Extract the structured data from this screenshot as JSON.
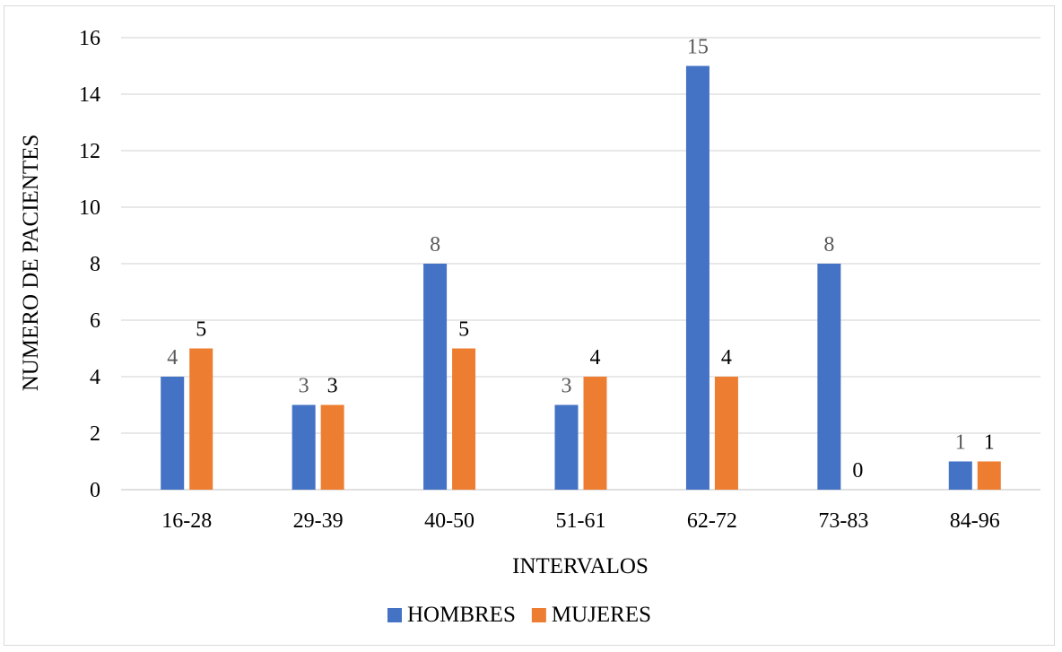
{
  "chart_data": {
    "type": "bar",
    "title": "",
    "xlabel": "INTERVALOS",
    "ylabel": "NUMERO DE PACIENTES",
    "ylim": [
      0,
      16
    ],
    "yticks": [
      0,
      2,
      4,
      6,
      8,
      10,
      12,
      14,
      16
    ],
    "grid": true,
    "legend_position": "bottom",
    "categories": [
      "16-28",
      "29-39",
      "40-50",
      "51-61",
      "62-72",
      "73-83",
      "84-96"
    ],
    "series": [
      {
        "name": "HOMBRES",
        "color": "#4472c4",
        "values": [
          4,
          3,
          8,
          3,
          15,
          8,
          1
        ]
      },
      {
        "name": "MUJERES",
        "color": "#ed7d31",
        "values": [
          5,
          3,
          5,
          4,
          4,
          0,
          1
        ]
      }
    ]
  }
}
